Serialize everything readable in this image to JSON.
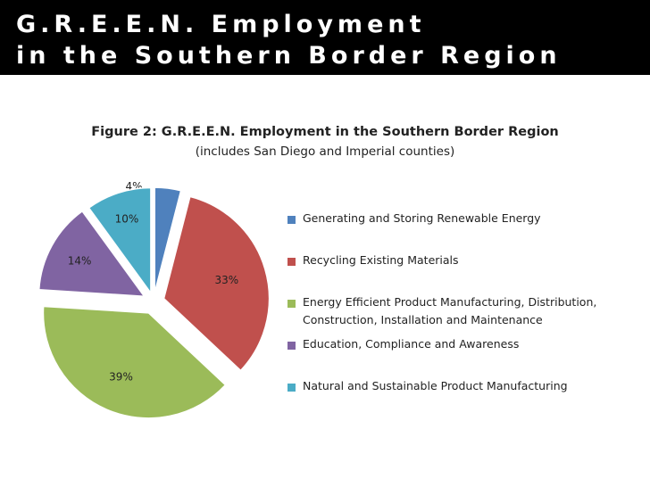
{
  "slide": {
    "title_line1": "G.R.E.E.N. Employment",
    "title_line2": "in the Southern Border Region"
  },
  "chart_data": {
    "type": "pie",
    "title": "Figure 2: G.R.E.E.N. Employment in the Southern Border Region",
    "subtitle": "(includes San Diego and Imperial counties)",
    "legend_position": "right",
    "exploded": true,
    "slices": [
      {
        "name": "Generating and Storing Renewable Energy",
        "value": 4,
        "label": "4%",
        "color": "#4f81bd"
      },
      {
        "name": "Recycling Existing Materials",
        "value": 33,
        "label": "33%",
        "color": "#c0504d"
      },
      {
        "name": "Energy Efficient Product Manufacturing, Distribution, Construction, Installation  and Maintenance",
        "value": 39,
        "label": "39%",
        "color": "#9bbb59"
      },
      {
        "name": "Education, Compliance and Awareness",
        "value": 14,
        "label": "14%",
        "color": "#8064a2"
      },
      {
        "name": "Natural and Sustainable Product Manufacturing",
        "value": 10,
        "label": "10%",
        "color": "#4bacc6"
      }
    ]
  }
}
